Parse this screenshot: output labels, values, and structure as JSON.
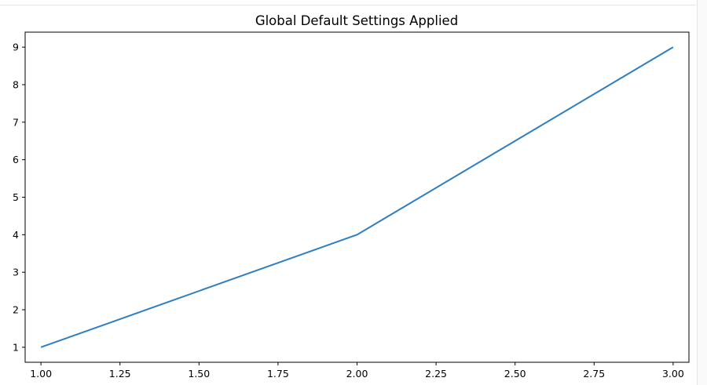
{
  "chart_data": {
    "type": "line",
    "title": "Global Default Settings Applied",
    "xlabel": "",
    "ylabel": "",
    "x": [
      1.0,
      2.0,
      3.0
    ],
    "series": [
      {
        "values": [
          1,
          4,
          9
        ],
        "color": "#2f7fbf"
      }
    ],
    "xlim": [
      0.95,
      3.05
    ],
    "ylim": [
      0.6,
      9.4
    ],
    "xticks": [
      1.0,
      1.25,
      1.5,
      1.75,
      2.0,
      2.25,
      2.5,
      2.75,
      3.0
    ],
    "xtick_labels": [
      "1.00",
      "1.25",
      "1.50",
      "1.75",
      "2.00",
      "2.25",
      "2.50",
      "2.75",
      "3.00"
    ],
    "yticks": [
      1,
      2,
      3,
      4,
      5,
      6,
      7,
      8,
      9
    ],
    "ytick_labels": [
      "1",
      "2",
      "3",
      "4",
      "5",
      "6",
      "7",
      "8",
      "9"
    ],
    "grid": false,
    "legend": false
  }
}
